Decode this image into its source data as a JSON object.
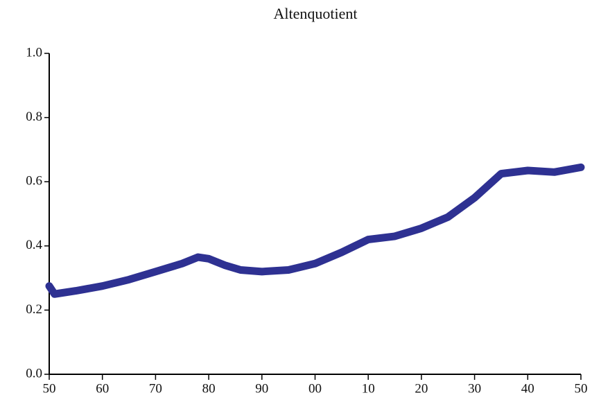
{
  "chart_data": {
    "type": "line",
    "title": "Altenquotient",
    "x": [
      1950,
      1951,
      1955,
      1960,
      1965,
      1970,
      1975,
      1978,
      1980,
      1983,
      1986,
      1990,
      1995,
      2000,
      2005,
      2010,
      2015,
      2020,
      2025,
      2030,
      2035,
      2040,
      2045,
      2050
    ],
    "series": [
      {
        "name": "Altenquotient",
        "color": "#2e3192",
        "values": [
          0.275,
          0.25,
          0.26,
          0.275,
          0.295,
          0.32,
          0.345,
          0.365,
          0.36,
          0.34,
          0.325,
          0.32,
          0.325,
          0.345,
          0.38,
          0.42,
          0.43,
          0.455,
          0.49,
          0.55,
          0.625,
          0.635,
          0.63,
          0.645
        ]
      }
    ],
    "xlim": [
      1950,
      2050
    ],
    "xticks": [
      {
        "value": 1950,
        "label": "50"
      },
      {
        "value": 1960,
        "label": "60"
      },
      {
        "value": 1970,
        "label": "70"
      },
      {
        "value": 1980,
        "label": "80"
      },
      {
        "value": 1990,
        "label": "90"
      },
      {
        "value": 2000,
        "label": "00"
      },
      {
        "value": 2010,
        "label": "10"
      },
      {
        "value": 2020,
        "label": "20"
      },
      {
        "value": 2030,
        "label": "30"
      },
      {
        "value": 2040,
        "label": "40"
      },
      {
        "value": 2050,
        "label": "50"
      }
    ],
    "ylim": [
      0,
      1
    ],
    "yticks": [
      {
        "value": 0,
        "label": "0.0"
      },
      0.2,
      0.4,
      0.6,
      0.8,
      {
        "value": 1,
        "label": "1.0"
      }
    ]
  }
}
